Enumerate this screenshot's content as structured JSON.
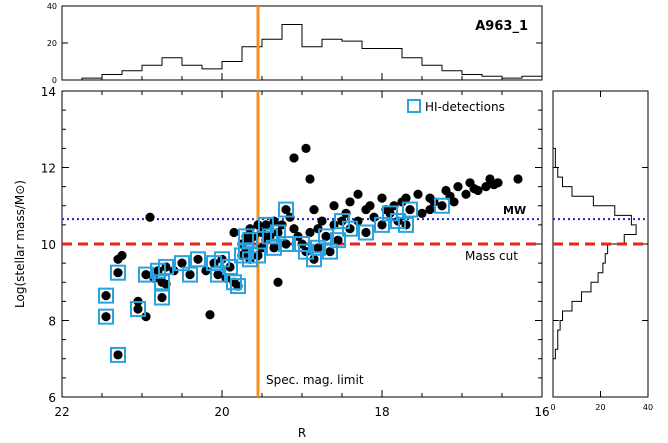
{
  "chart_data": {
    "type": "scatter",
    "title": "A963_1",
    "xlabel": "R",
    "ylabel": "Log(stellar mass/M⊙)",
    "xlim": [
      22,
      16
    ],
    "ylim": [
      6,
      14
    ],
    "x_ticks": [
      22,
      20,
      18,
      16
    ],
    "y_ticks": [
      6,
      8,
      10,
      12,
      14
    ],
    "legend": {
      "label": "HI-detections",
      "placement": "top-right"
    },
    "colors": {
      "points": "#000000",
      "hi_detection": "#29a3e0",
      "mag_limit": "#f5901e",
      "mw_line": "#2222cc",
      "mass_cut": "#e8231c"
    },
    "reference_lines": {
      "spec_mag_limit": {
        "x": 19.55,
        "label": "Spec. mag. limit",
        "orientation": "vertical",
        "style": "solid"
      },
      "mw": {
        "y": 10.65,
        "label": "MW",
        "orientation": "horizontal",
        "style": "dotted"
      },
      "mass_cut": {
        "y": 10.0,
        "label": "Mass cut",
        "orientation": "horizontal",
        "style": "dashed"
      }
    },
    "galaxies": [
      [
        21.45,
        8.1
      ],
      [
        21.45,
        8.65
      ],
      [
        21.3,
        7.1
      ],
      [
        21.3,
        9.25
      ],
      [
        21.3,
        9.6
      ],
      [
        21.25,
        9.7
      ],
      [
        21.05,
        8.5
      ],
      [
        21.05,
        8.3
      ],
      [
        20.95,
        9.2
      ],
      [
        20.85,
        9.1
      ],
      [
        20.9,
        10.7
      ],
      [
        20.95,
        8.1
      ],
      [
        20.8,
        9.3
      ],
      [
        20.75,
        9.0
      ],
      [
        20.7,
        8.95
      ],
      [
        20.75,
        8.6
      ],
      [
        20.7,
        9.4
      ],
      [
        20.6,
        9.3
      ],
      [
        20.5,
        9.5
      ],
      [
        20.4,
        9.2
      ],
      [
        20.3,
        9.6
      ],
      [
        20.2,
        9.3
      ],
      [
        20.15,
        8.15
      ],
      [
        20.1,
        9.5
      ],
      [
        20.05,
        9.2
      ],
      [
        20.0,
        9.6
      ],
      [
        19.95,
        9.1
      ],
      [
        19.9,
        9.4
      ],
      [
        19.85,
        9.0
      ],
      [
        19.8,
        8.9
      ],
      [
        19.75,
        9.7
      ],
      [
        19.75,
        10.0
      ],
      [
        19.7,
        10.2
      ],
      [
        19.7,
        9.8
      ],
      [
        19.65,
        9.6
      ],
      [
        19.65,
        10.1
      ],
      [
        19.6,
        10.2
      ],
      [
        19.55,
        9.7
      ],
      [
        19.5,
        9.9
      ],
      [
        19.5,
        10.3
      ],
      [
        19.45,
        10.5
      ],
      [
        19.4,
        10.2
      ],
      [
        19.35,
        9.9
      ],
      [
        19.3,
        10.3
      ],
      [
        19.3,
        9.0
      ],
      [
        19.25,
        10.5
      ],
      [
        19.2,
        10.9
      ],
      [
        19.2,
        10.0
      ],
      [
        19.1,
        10.4
      ],
      [
        19.05,
        10.2
      ],
      [
        19.0,
        10.0
      ],
      [
        18.95,
        9.8
      ],
      [
        18.9,
        10.3
      ],
      [
        18.85,
        9.6
      ],
      [
        18.8,
        10.4
      ],
      [
        18.8,
        9.9
      ],
      [
        18.75,
        10.6
      ],
      [
        18.7,
        10.2
      ],
      [
        18.65,
        9.8
      ],
      [
        18.6,
        10.5
      ],
      [
        18.55,
        10.1
      ],
      [
        18.5,
        10.6
      ],
      [
        18.4,
        10.4
      ],
      [
        18.3,
        10.6
      ],
      [
        18.2,
        10.3
      ],
      [
        18.1,
        10.7
      ],
      [
        18.0,
        10.5
      ],
      [
        17.9,
        10.8
      ],
      [
        17.8,
        10.6
      ],
      [
        17.7,
        10.5
      ],
      [
        17.65,
        10.9
      ],
      [
        17.5,
        10.8
      ],
      [
        17.4,
        10.9
      ],
      [
        17.25,
        11.0
      ],
      [
        17.1,
        11.1
      ],
      [
        16.95,
        11.3
      ],
      [
        16.8,
        11.4
      ],
      [
        16.7,
        11.5
      ],
      [
        16.55,
        11.6
      ],
      [
        16.3,
        11.7
      ],
      [
        19.1,
        12.25
      ],
      [
        18.95,
        12.5
      ],
      [
        18.9,
        11.7
      ],
      [
        18.6,
        11.0
      ],
      [
        18.4,
        11.1
      ],
      [
        18.2,
        10.9
      ],
      [
        18.3,
        11.3
      ],
      [
        18.0,
        11.2
      ],
      [
        17.85,
        11.0
      ],
      [
        17.7,
        11.2
      ],
      [
        17.55,
        11.3
      ],
      [
        17.4,
        11.2
      ],
      [
        17.2,
        11.4
      ],
      [
        17.05,
        11.5
      ],
      [
        16.9,
        11.6
      ],
      [
        16.65,
        11.7
      ],
      [
        19.55,
        10.5
      ],
      [
        19.65,
        10.4
      ],
      [
        19.85,
        10.3
      ],
      [
        19.45,
        10.1
      ],
      [
        19.35,
        10.6
      ],
      [
        19.15,
        10.7
      ],
      [
        18.85,
        10.9
      ],
      [
        18.45,
        10.8
      ],
      [
        18.15,
        11.0
      ],
      [
        17.95,
        10.9
      ],
      [
        17.75,
        11.1
      ],
      [
        17.35,
        11.1
      ],
      [
        17.15,
        11.25
      ],
      [
        16.85,
        11.45
      ],
      [
        16.6,
        11.55
      ]
    ],
    "hi_detections": [
      [
        21.45,
        8.1
      ],
      [
        21.45,
        8.65
      ],
      [
        21.3,
        7.1
      ],
      [
        21.3,
        9.25
      ],
      [
        21.05,
        8.3
      ],
      [
        20.95,
        9.2
      ],
      [
        20.8,
        9.3
      ],
      [
        20.75,
        9.0
      ],
      [
        20.75,
        8.6
      ],
      [
        20.7,
        9.4
      ],
      [
        20.5,
        9.5
      ],
      [
        20.4,
        9.2
      ],
      [
        20.3,
        9.6
      ],
      [
        20.1,
        9.5
      ],
      [
        20.05,
        9.2
      ],
      [
        20.0,
        9.6
      ],
      [
        19.9,
        9.4
      ],
      [
        19.85,
        9.0
      ],
      [
        19.8,
        8.9
      ],
      [
        19.75,
        9.7
      ],
      [
        19.7,
        10.2
      ],
      [
        19.7,
        9.8
      ],
      [
        19.65,
        9.6
      ],
      [
        19.65,
        10.1
      ],
      [
        19.55,
        9.7
      ],
      [
        19.45,
        10.5
      ],
      [
        19.4,
        10.2
      ],
      [
        19.35,
        9.9
      ],
      [
        19.3,
        10.3
      ],
      [
        19.2,
        10.9
      ],
      [
        19.2,
        10.0
      ],
      [
        19.0,
        10.0
      ],
      [
        18.95,
        9.8
      ],
      [
        18.85,
        9.6
      ],
      [
        18.8,
        9.9
      ],
      [
        18.7,
        10.2
      ],
      [
        18.65,
        9.8
      ],
      [
        18.55,
        10.1
      ],
      [
        18.5,
        10.6
      ],
      [
        18.4,
        10.4
      ],
      [
        18.2,
        10.3
      ],
      [
        18.0,
        10.5
      ],
      [
        17.9,
        10.8
      ],
      [
        17.8,
        10.6
      ],
      [
        17.7,
        10.5
      ],
      [
        17.65,
        10.9
      ],
      [
        17.25,
        11.0
      ]
    ],
    "histogram_top": {
      "ylim": [
        0,
        40
      ],
      "y_ticks": [
        0,
        20,
        40
      ],
      "bin_edges": [
        21.75,
        21.5,
        21.25,
        21.0,
        20.75,
        20.5,
        20.25,
        20.0,
        19.75,
        19.5,
        19.25,
        19.0,
        18.75,
        18.5,
        18.25,
        18.0,
        17.75,
        17.5,
        17.25,
        17.0,
        16.75,
        16.5,
        16.25,
        16.0
      ],
      "counts": [
        1,
        3,
        5,
        8,
        12,
        8,
        6,
        10,
        18,
        22,
        30,
        18,
        22,
        21,
        17,
        17,
        12,
        8,
        5,
        3,
        2,
        1,
        2
      ]
    },
    "histogram_right": {
      "xlim": [
        0,
        40
      ],
      "x_ticks": [
        0,
        20,
        40
      ],
      "bin_edges": [
        7.0,
        7.25,
        7.5,
        7.75,
        8.0,
        8.25,
        8.5,
        8.75,
        9.0,
        9.25,
        9.5,
        9.75,
        10.0,
        10.25,
        10.5,
        10.75,
        11.0,
        11.25,
        11.5,
        11.75,
        12.0,
        12.25,
        12.5
      ],
      "counts": [
        1,
        2,
        2,
        3,
        4,
        8,
        12,
        16,
        19,
        21,
        22,
        23,
        30,
        35,
        33,
        26,
        17,
        8,
        4,
        2,
        1,
        1
      ]
    }
  }
}
